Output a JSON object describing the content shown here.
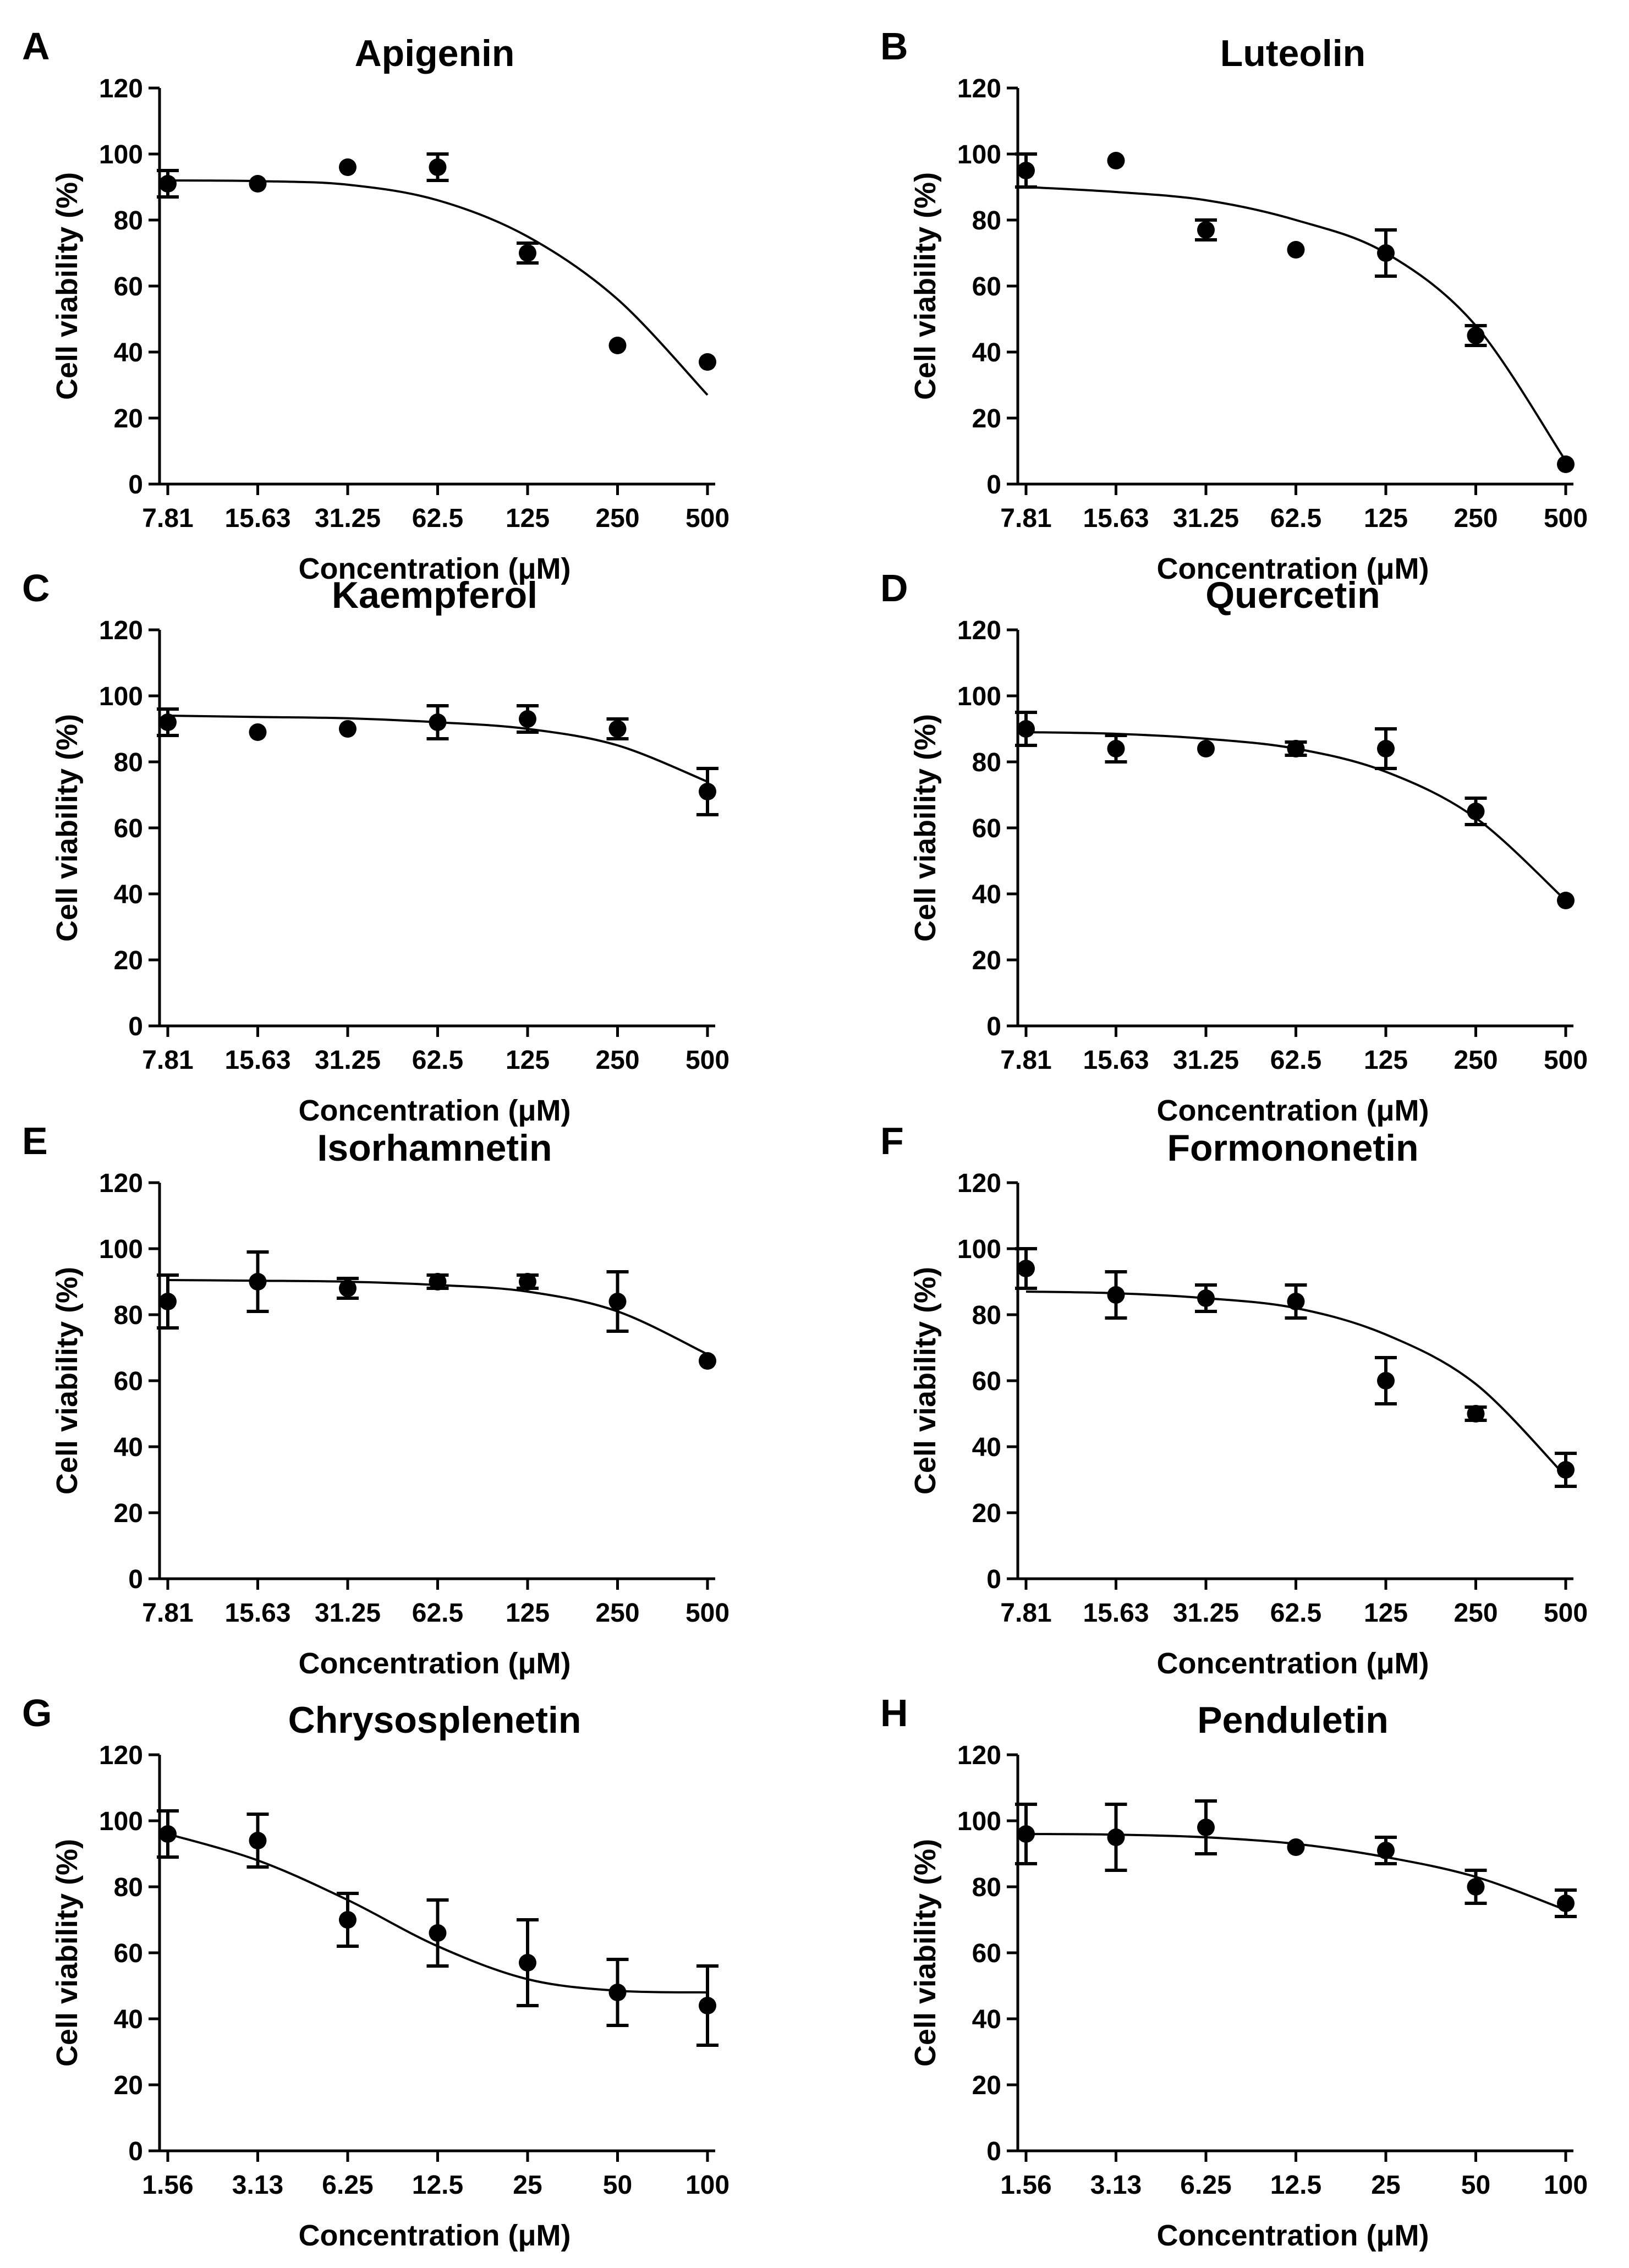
{
  "figure": {
    "chart_data": [
      {
        "panel": "A",
        "type": "scatter",
        "title": "Apigenin",
        "xlabel": "Concentration (μM)",
        "ylabel": "Cell viability (%)",
        "categories": [
          "7.81",
          "15.63",
          "31.25",
          "62.5",
          "125",
          "250",
          "500"
        ],
        "yticks": [
          "0",
          "20",
          "40",
          "60",
          "80",
          "100",
          "120"
        ],
        "ylim": [
          0,
          120
        ],
        "grid": false,
        "legend": "none",
        "means": [
          91,
          91,
          96,
          96,
          70,
          42,
          37
        ],
        "errors": [
          4,
          1,
          1,
          4,
          3,
          1,
          1
        ],
        "fit": [
          92,
          91.8,
          90.7,
          86,
          75,
          56,
          27
        ]
      },
      {
        "panel": "B",
        "type": "scatter",
        "title": "Luteolin",
        "xlabel": "Concentration (μM)",
        "ylabel": "Cell viability (%)",
        "categories": [
          "7.81",
          "15.63",
          "31.25",
          "62.5",
          "125",
          "250",
          "500"
        ],
        "yticks": [
          "0",
          "20",
          "40",
          "60",
          "80",
          "100",
          "120"
        ],
        "ylim": [
          0,
          120
        ],
        "grid": false,
        "legend": "none",
        "means": [
          95,
          98,
          77,
          71,
          70,
          45,
          6
        ],
        "errors": [
          5,
          1,
          3,
          1,
          7,
          3,
          1
        ],
        "fit": [
          90,
          88.5,
          86,
          80,
          70,
          48,
          7
        ]
      },
      {
        "panel": "C",
        "type": "scatter",
        "title": "Kaempferol",
        "xlabel": "Concentration (μM)",
        "ylabel": "Cell viability (%)",
        "categories": [
          "7.81",
          "15.63",
          "31.25",
          "62.5",
          "125",
          "250",
          "500"
        ],
        "yticks": [
          "0",
          "20",
          "40",
          "60",
          "80",
          "100",
          "120"
        ],
        "ylim": [
          0,
          120
        ],
        "grid": false,
        "legend": "none",
        "means": [
          92,
          89,
          90,
          92,
          93,
          90,
          71
        ],
        "errors": [
          4,
          1,
          1,
          5,
          4,
          3,
          7
        ],
        "fit": [
          94,
          93.6,
          93.2,
          92,
          90,
          85,
          74
        ]
      },
      {
        "panel": "D",
        "type": "scatter",
        "title": "Quercetin",
        "xlabel": "Concentration (μM)",
        "ylabel": "Cell viability (%)",
        "categories": [
          "7.81",
          "15.63",
          "31.25",
          "62.5",
          "125",
          "250",
          "500"
        ],
        "yticks": [
          "0",
          "20",
          "40",
          "60",
          "80",
          "100",
          "120"
        ],
        "ylim": [
          0,
          120
        ],
        "grid": false,
        "legend": "none",
        "means": [
          90,
          84,
          84,
          84,
          84,
          65,
          38
        ],
        "errors": [
          5,
          4,
          1,
          2,
          6,
          4,
          1
        ],
        "fit": [
          89,
          88.5,
          87,
          84,
          77,
          63,
          38
        ]
      },
      {
        "panel": "E",
        "type": "scatter",
        "title": "Isorhamnetin",
        "xlabel": "Concentration (μM)",
        "ylabel": "Cell viability (%)",
        "categories": [
          "7.81",
          "15.63",
          "31.25",
          "62.5",
          "125",
          "250",
          "500"
        ],
        "yticks": [
          "0",
          "20",
          "40",
          "60",
          "80",
          "100",
          "120"
        ],
        "ylim": [
          0,
          120
        ],
        "grid": false,
        "legend": "none",
        "means": [
          84,
          90,
          88,
          90,
          90,
          84,
          66
        ],
        "errors": [
          8,
          9,
          3,
          2,
          2,
          9,
          1
        ],
        "fit": [
          90.5,
          90.3,
          90,
          89,
          87,
          81,
          68
        ]
      },
      {
        "panel": "F",
        "type": "scatter",
        "title": "Formononetin",
        "xlabel": "Concentration (μM)",
        "ylabel": "Cell viability (%)",
        "categories": [
          "7.81",
          "15.63",
          "31.25",
          "62.5",
          "125",
          "250",
          "500"
        ],
        "yticks": [
          "0",
          "20",
          "40",
          "60",
          "80",
          "100",
          "120"
        ],
        "ylim": [
          0,
          120
        ],
        "grid": false,
        "legend": "none",
        "means": [
          94,
          86,
          85,
          84,
          60,
          50,
          33
        ],
        "errors": [
          6,
          7,
          4,
          5,
          7,
          2,
          5
        ],
        "fit": [
          87,
          86.5,
          85,
          82,
          74,
          59,
          31
        ]
      },
      {
        "panel": "G",
        "type": "scatter",
        "title": "Chrysosplenetin",
        "xlabel": "Concentration (μM)",
        "ylabel": "Cell viability (%)",
        "categories": [
          "1.56",
          "3.13",
          "6.25",
          "12.5",
          "25",
          "50",
          "100"
        ],
        "yticks": [
          "0",
          "20",
          "40",
          "60",
          "80",
          "100",
          "120"
        ],
        "ylim": [
          0,
          120
        ],
        "grid": false,
        "legend": "none",
        "means": [
          96,
          94,
          70,
          66,
          57,
          48,
          44
        ],
        "errors": [
          7,
          8,
          8,
          10,
          13,
          10,
          12
        ],
        "fit": [
          96,
          88,
          76,
          62,
          52,
          48.5,
          48
        ]
      },
      {
        "panel": "H",
        "type": "scatter",
        "title": "Penduletin",
        "xlabel": "Concentration (μM)",
        "ylabel": "Cell viability (%)",
        "categories": [
          "1.56",
          "3.13",
          "6.25",
          "12.5",
          "25",
          "50",
          "100"
        ],
        "yticks": [
          "0",
          "20",
          "40",
          "60",
          "80",
          "100",
          "120"
        ],
        "ylim": [
          0,
          120
        ],
        "grid": false,
        "legend": "none",
        "means": [
          96,
          95,
          98,
          92,
          91,
          80,
          75
        ],
        "errors": [
          9,
          10,
          8,
          1,
          4,
          5,
          4
        ],
        "fit": [
          96,
          95.8,
          95,
          93,
          89,
          83,
          73
        ]
      }
    ]
  }
}
